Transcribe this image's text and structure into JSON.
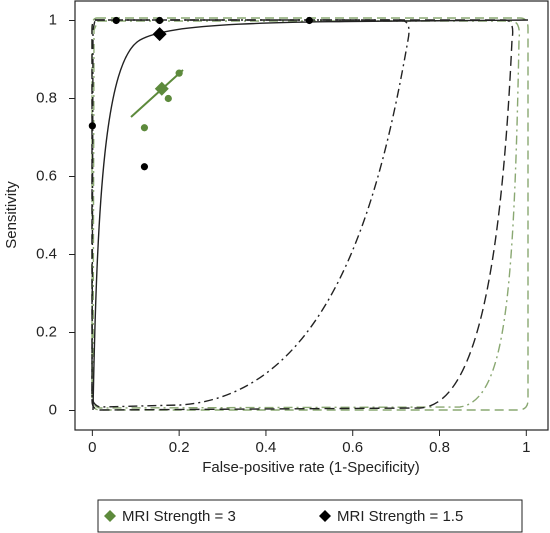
{
  "chart_data": {
    "type": "scatter",
    "xlabel": "False-positive rate (1-Specificity)",
    "ylabel": "Sensitivity",
    "xlim": [
      -0.04,
      1.05
    ],
    "ylim": [
      -0.05,
      1.05
    ],
    "xticks": [
      0,
      0.2,
      0.4,
      0.6,
      0.8,
      1
    ],
    "yticks": [
      0,
      0.2,
      0.4,
      0.6,
      0.8,
      1
    ],
    "legend": "bottom",
    "series": [
      {
        "name": "MRI Strength = 3",
        "color": "#5d8a3c",
        "x": [
          0.12,
          0.175,
          0.2
        ],
        "values": [
          0.725,
          0.8,
          0.865
        ],
        "summary_x": 0.16,
        "summary_y": 0.825
      },
      {
        "name": "MRI Strength = 1.5",
        "color": "#000000",
        "x": [
          0,
          0.055,
          0.155,
          0.5,
          0.12
        ],
        "values": [
          0.73,
          1,
          1,
          1,
          0.625
        ],
        "summary_x": 0.155,
        "summary_y": 0.965
      }
    ]
  }
}
